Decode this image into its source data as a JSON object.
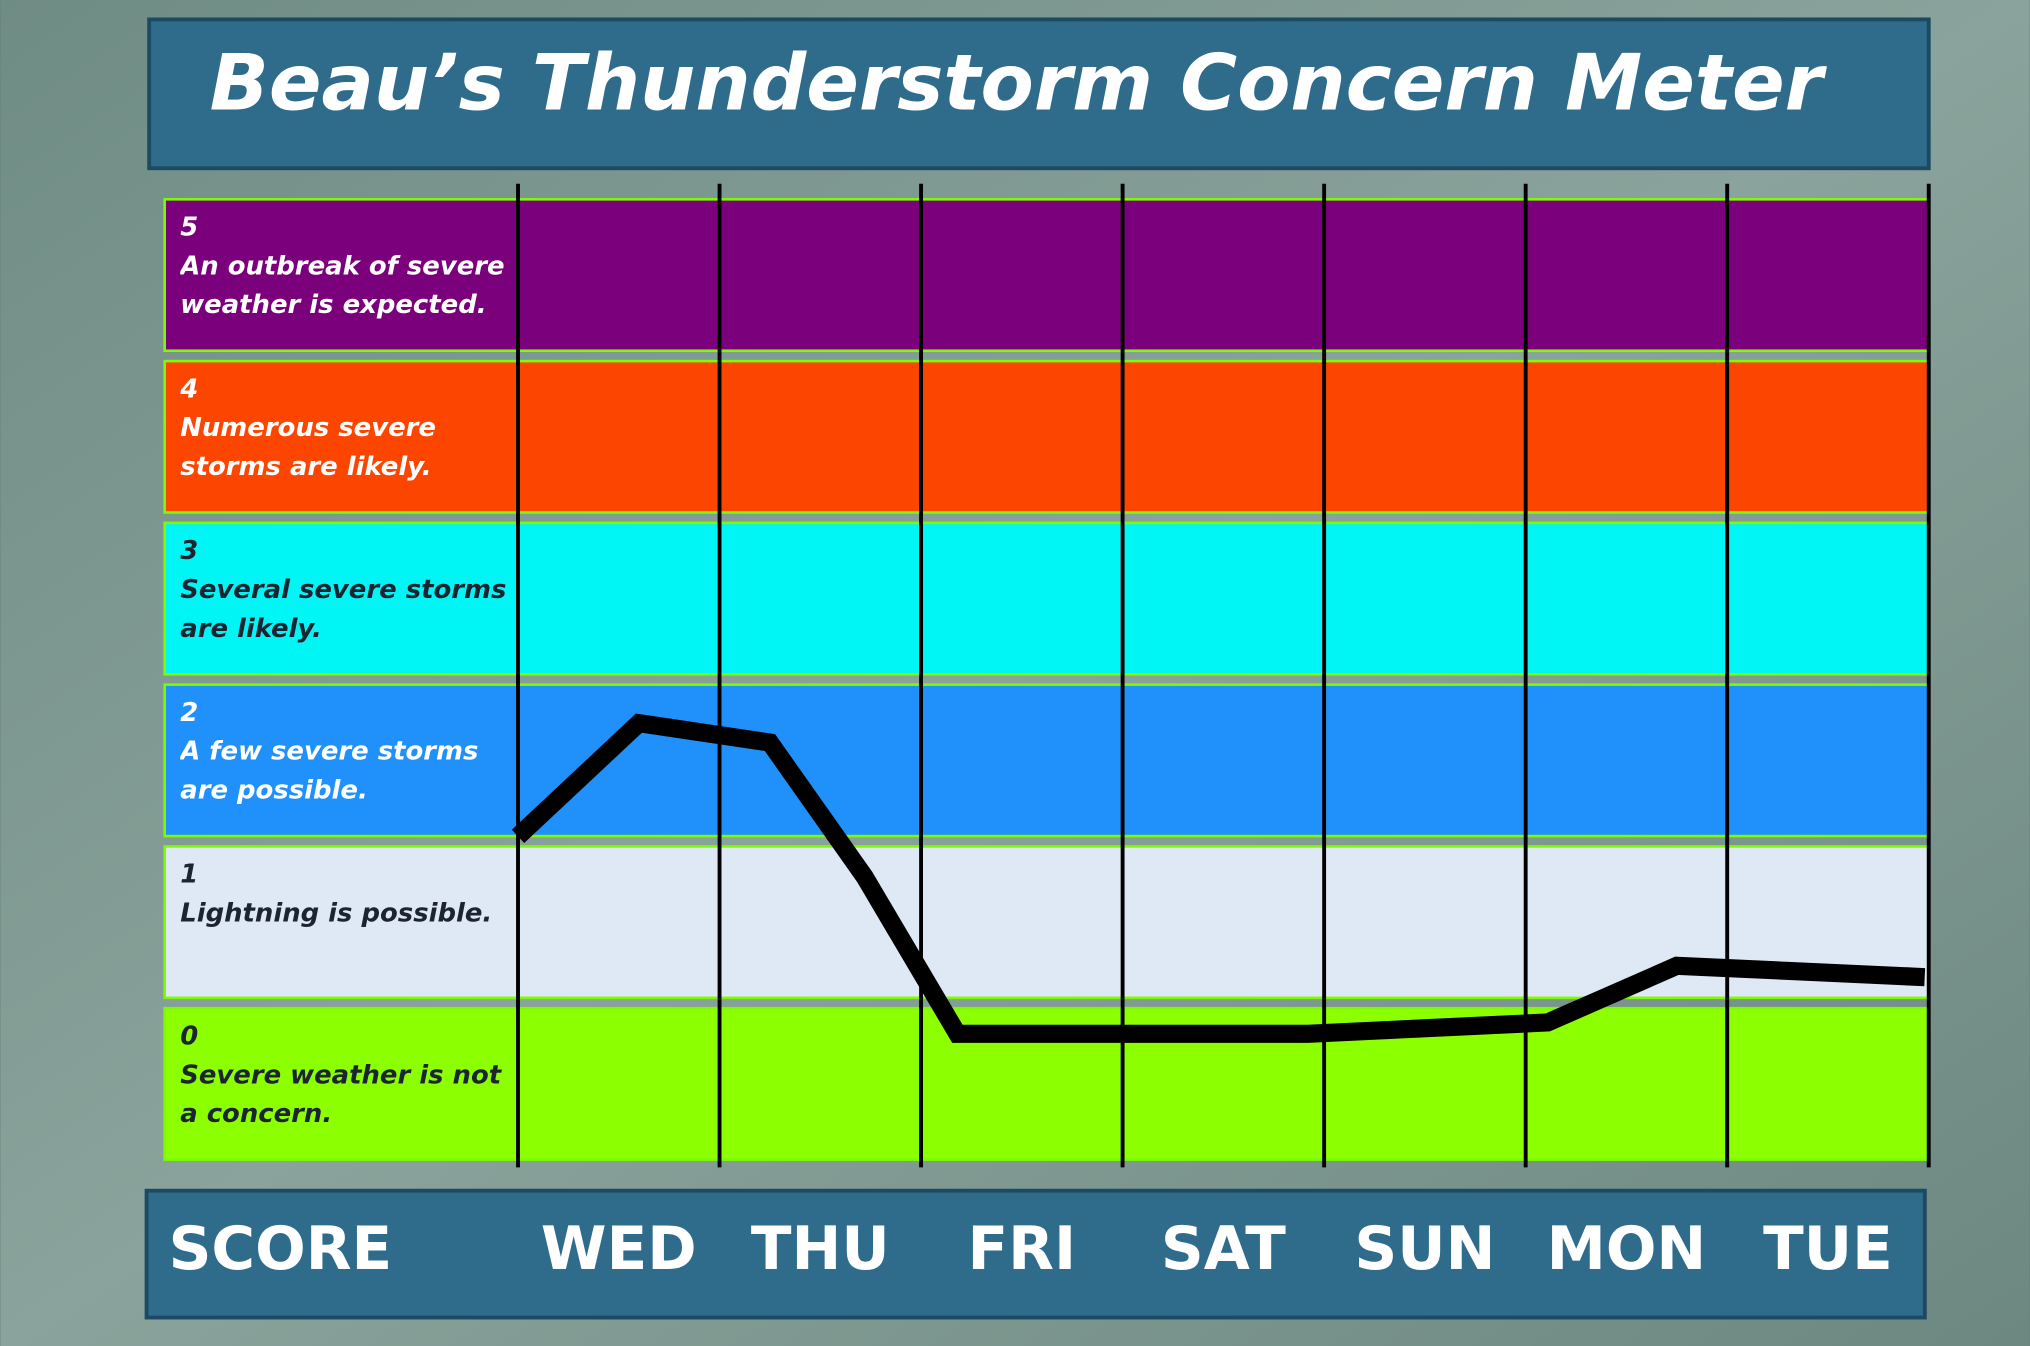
{
  "chart_data": {
    "type": "line",
    "title": "Beau’s Thunderstorm Concern Meter",
    "x_label": "SCORE",
    "categories": [
      "WED",
      "THU",
      "FRI",
      "SAT",
      "SUN",
      "MON",
      "TUE"
    ],
    "xlim": [
      0,
      7
    ],
    "ylim": [
      -0.5,
      5.5
    ],
    "bands": [
      {
        "level": 5,
        "description": "An outbreak of severe weather is expected.",
        "color": "#7b007b"
      },
      {
        "level": 4,
        "description": "Numerous severe storms are likely.",
        "color": "#fc4600"
      },
      {
        "level": 3,
        "description": "Several severe storms are likely.",
        "color": "#00f5f5"
      },
      {
        "level": 2,
        "description": "A few severe storms are possible.",
        "color": "#2091fa"
      },
      {
        "level": 1,
        "description": "Lightning is possible.",
        "color": "#dfe9f5"
      },
      {
        "level": 0,
        "description": "Severe weather is not a concern.",
        "color": "#8cff00"
      }
    ],
    "x": [
      0,
      0.6,
      1.25,
      1.72,
      2.18,
      3.92,
      5.11,
      5.75,
      6.98
    ],
    "values": [
      1.53,
      2.23,
      2.11,
      1.28,
      0.31,
      0.31,
      0.38,
      0.73,
      0.66
    ],
    "color": "#000000"
  }
}
